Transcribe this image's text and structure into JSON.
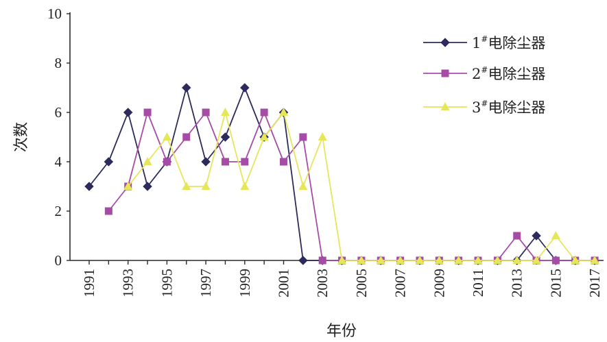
{
  "chart_data": {
    "type": "line",
    "title": "",
    "xlabel": "年份",
    "ylabel": "次数",
    "x": [
      1991,
      1992,
      1993,
      1994,
      1995,
      1996,
      1997,
      1998,
      1999,
      2000,
      2001,
      2002,
      2003,
      2004,
      2005,
      2006,
      2007,
      2008,
      2009,
      2010,
      2011,
      2012,
      2013,
      2014,
      2015,
      2016,
      2017
    ],
    "xticks": [
      "1991",
      "1993",
      "1995",
      "1997",
      "1999",
      "2001",
      "2003",
      "2005",
      "2007",
      "2009",
      "2011",
      "2013",
      "2015",
      "2017"
    ],
    "ylim": [
      0,
      10
    ],
    "yticks": [
      "0",
      "2",
      "4",
      "6",
      "8",
      "10"
    ],
    "grid": false,
    "legend": "top-right",
    "series": [
      {
        "name": "1#电除尘器",
        "color": "#2c2b5c",
        "marker": "diamond",
        "values": [
          3,
          4,
          6,
          3,
          4,
          7,
          4,
          5,
          7,
          5,
          6,
          0,
          0,
          0,
          0,
          0,
          0,
          0,
          0,
          0,
          0,
          0,
          0,
          1,
          0,
          0,
          0
        ]
      },
      {
        "name": "2#电除尘器",
        "color": "#a64ca6",
        "marker": "square",
        "values": [
          null,
          2,
          3,
          6,
          4,
          5,
          6,
          4,
          4,
          6,
          4,
          5,
          0,
          0,
          0,
          0,
          0,
          0,
          0,
          0,
          0,
          0,
          1,
          0,
          0,
          0,
          0
        ]
      },
      {
        "name": "3#电除尘器",
        "color": "#e6e65a",
        "marker": "triangle",
        "values": [
          null,
          null,
          3,
          4,
          5,
          3,
          3,
          6,
          3,
          5,
          6,
          3,
          5,
          0,
          0,
          0,
          0,
          0,
          0,
          0,
          0,
          0,
          0,
          0,
          1,
          0,
          0
        ]
      }
    ]
  }
}
